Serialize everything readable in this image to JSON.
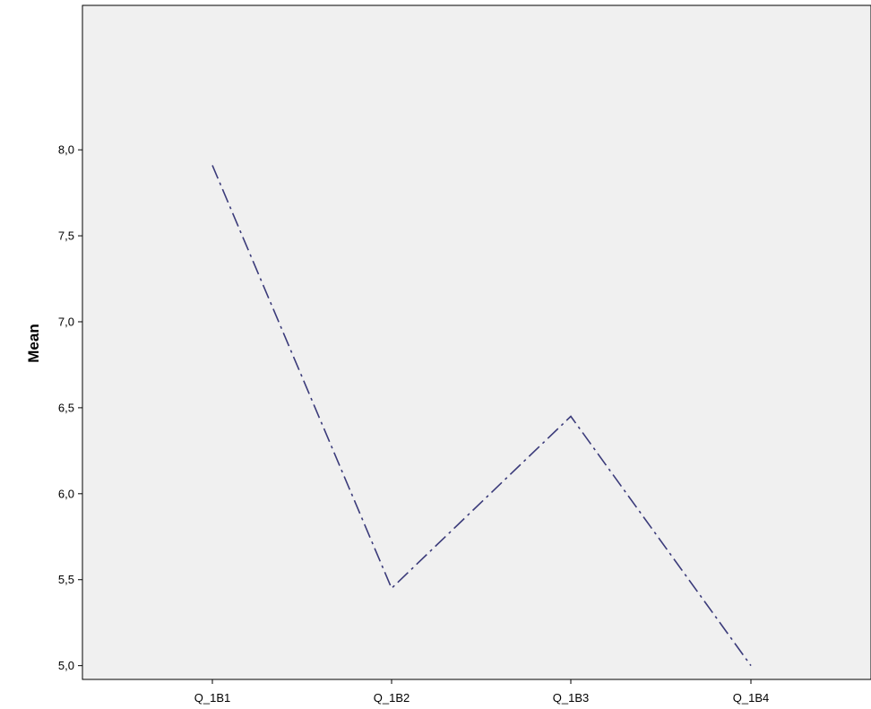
{
  "chart_data": {
    "type": "line",
    "title": "",
    "xlabel": "",
    "ylabel": "Mean",
    "categories": [
      "Q_1B1",
      "Q_1B2",
      "Q_1B3",
      "Q_1B4"
    ],
    "series": [
      {
        "values": [
          7.91,
          5.45,
          6.45,
          5.0
        ]
      }
    ],
    "ylim": [
      4.92,
      8.84
    ],
    "yticks": [
      5.0,
      5.5,
      6.0,
      6.5,
      7.0,
      7.5,
      8.0
    ],
    "ytick_labels": [
      "5,0",
      "5,5",
      "6,0",
      "6,5",
      "7,0",
      "7,5",
      "8,0"
    ],
    "grid": false,
    "legend": "none",
    "plot_background": "#f0f0f0",
    "line_color": "#3b3b7a",
    "line_style": "dash-dot"
  }
}
